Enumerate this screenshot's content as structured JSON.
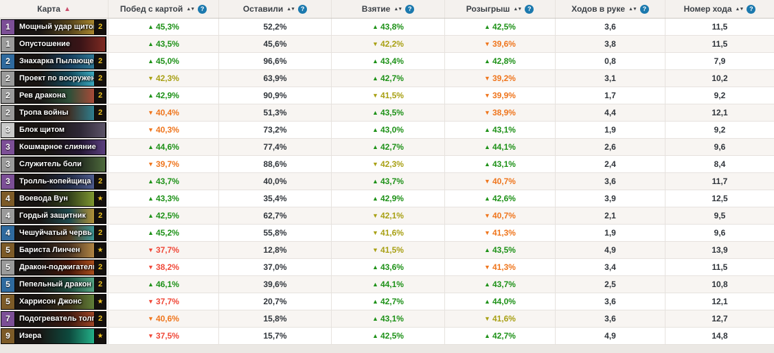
{
  "colors": {
    "green": "#1d9117",
    "olive": "#a8a014",
    "orange": "#ef751c",
    "red": "#f04838",
    "gold": "#f0c420",
    "help-blue": "#1b79ae",
    "pink": "#ca4f6d",
    "free": "#c9c9c9",
    "common": "#9a9a9a",
    "rare": "#2f6a9e",
    "epic": "#7c4f96",
    "legendary": "#7d5b28"
  },
  "table": {
    "columns": [
      {
        "label": "Карта",
        "sort": "asc",
        "help": false
      },
      {
        "label": "Побед с картой",
        "sort": "both",
        "help": true
      },
      {
        "label": "Оставили",
        "sort": "both",
        "help": true
      },
      {
        "label": "Взятие",
        "sort": "both",
        "help": true
      },
      {
        "label": "Розыгрыш",
        "sort": "both",
        "help": true
      },
      {
        "label": "Ходов в руке",
        "sort": "both",
        "help": true
      },
      {
        "label": "Номер хода",
        "sort": "both",
        "help": true
      }
    ],
    "rows": [
      {
        "cost": "1",
        "rarity": "epic",
        "name": "Мощный удар щитом",
        "count": "2",
        "wins": {
          "arrow": "up",
          "value": "45,3%",
          "tone": "green"
        },
        "kept": "52,2%",
        "drawn": {
          "arrow": "up",
          "value": "43,8%",
          "tone": "green"
        },
        "played": {
          "arrow": "up",
          "value": "42,5%",
          "tone": "green"
        },
        "hand": "3,6",
        "turn": "11,5",
        "art": [
          "#54431c",
          "#a8862e"
        ]
      },
      {
        "cost": "1",
        "rarity": "common",
        "name": "Опустошение",
        "count": "",
        "wins": {
          "arrow": "up",
          "value": "43,5%",
          "tone": "green"
        },
        "kept": "45,6%",
        "drawn": {
          "arrow": "down",
          "value": "42,2%",
          "tone": "olive"
        },
        "played": {
          "arrow": "down",
          "value": "39,6%",
          "tone": "orange"
        },
        "hand": "3,8",
        "turn": "11,5",
        "art": [
          "#3a1417",
          "#7e2a22"
        ]
      },
      {
        "cost": "2",
        "rarity": "rare",
        "name": "Знахарка Пылающег...",
        "count": "2",
        "wins": {
          "arrow": "up",
          "value": "45,0%",
          "tone": "green"
        },
        "kept": "96,6%",
        "drawn": {
          "arrow": "up",
          "value": "43,4%",
          "tone": "green"
        },
        "played": {
          "arrow": "up",
          "value": "42,8%",
          "tone": "green"
        },
        "hand": "0,8",
        "turn": "7,9",
        "art": [
          "#173d5c",
          "#2e7796"
        ]
      },
      {
        "cost": "2",
        "rarity": "common",
        "name": "Проект по вооружен...",
        "count": "2",
        "wins": {
          "arrow": "down",
          "value": "42,3%",
          "tone": "olive"
        },
        "kept": "63,9%",
        "drawn": {
          "arrow": "up",
          "value": "42,7%",
          "tone": "green"
        },
        "played": {
          "arrow": "down",
          "value": "39,2%",
          "tone": "orange"
        },
        "hand": "3,1",
        "turn": "10,2",
        "art": [
          "#14485a",
          "#3aa7bd"
        ]
      },
      {
        "cost": "2",
        "rarity": "common",
        "name": "Рев дракона",
        "count": "2",
        "wins": {
          "arrow": "up",
          "value": "42,9%",
          "tone": "green"
        },
        "kept": "90,9%",
        "drawn": {
          "arrow": "down",
          "value": "41,5%",
          "tone": "olive"
        },
        "played": {
          "arrow": "down",
          "value": "39,9%",
          "tone": "orange"
        },
        "hand": "1,7",
        "turn": "9,2",
        "art": [
          "#2e4f38",
          "#a84a38"
        ]
      },
      {
        "cost": "2",
        "rarity": "common",
        "name": "Тропа войны",
        "count": "2",
        "wins": {
          "arrow": "down",
          "value": "40,4%",
          "tone": "orange"
        },
        "kept": "51,3%",
        "drawn": {
          "arrow": "up",
          "value": "43,5%",
          "tone": "green"
        },
        "played": {
          "arrow": "down",
          "value": "38,9%",
          "tone": "orange"
        },
        "hand": "4,4",
        "turn": "12,1",
        "art": [
          "#3e3026",
          "#2e7e8e"
        ]
      },
      {
        "cost": "3",
        "rarity": "free",
        "name": "Блок щитом",
        "count": "",
        "wins": {
          "arrow": "down",
          "value": "40,3%",
          "tone": "orange"
        },
        "kept": "73,2%",
        "drawn": {
          "arrow": "up",
          "value": "43,0%",
          "tone": "green"
        },
        "played": {
          "arrow": "up",
          "value": "43,1%",
          "tone": "green"
        },
        "hand": "1,9",
        "turn": "9,2",
        "art": [
          "#2e2836",
          "#5c5468"
        ]
      },
      {
        "cost": "3",
        "rarity": "epic",
        "name": "Кошмарное слияние",
        "count": "",
        "wins": {
          "arrow": "up",
          "value": "44,6%",
          "tone": "green"
        },
        "kept": "77,4%",
        "drawn": {
          "arrow": "up",
          "value": "42,7%",
          "tone": "green"
        },
        "played": {
          "arrow": "up",
          "value": "44,1%",
          "tone": "green"
        },
        "hand": "2,6",
        "turn": "9,6",
        "art": [
          "#241634",
          "#5a3f7e"
        ]
      },
      {
        "cost": "3",
        "rarity": "common",
        "name": "Служитель боли",
        "count": "",
        "wins": {
          "arrow": "down",
          "value": "39,7%",
          "tone": "orange"
        },
        "kept": "88,6%",
        "drawn": {
          "arrow": "down",
          "value": "42,3%",
          "tone": "olive"
        },
        "played": {
          "arrow": "up",
          "value": "43,1%",
          "tone": "green"
        },
        "hand": "2,4",
        "turn": "8,4",
        "art": [
          "#232d20",
          "#4e6a3c"
        ]
      },
      {
        "cost": "3",
        "rarity": "epic",
        "name": "Тролль-копейщица",
        "count": "2",
        "wins": {
          "arrow": "up",
          "value": "43,7%",
          "tone": "green"
        },
        "kept": "40,0%",
        "drawn": {
          "arrow": "up",
          "value": "43,7%",
          "tone": "green"
        },
        "played": {
          "arrow": "down",
          "value": "40,7%",
          "tone": "orange"
        },
        "hand": "3,6",
        "turn": "11,7",
        "art": [
          "#222c46",
          "#4e5c8e"
        ]
      },
      {
        "cost": "4",
        "rarity": "legendary",
        "name": "Воевода Вун",
        "count": "★",
        "wins": {
          "arrow": "up",
          "value": "43,3%",
          "tone": "green"
        },
        "kept": "35,4%",
        "drawn": {
          "arrow": "up",
          "value": "42,9%",
          "tone": "green"
        },
        "played": {
          "arrow": "up",
          "value": "42,6%",
          "tone": "green"
        },
        "hand": "3,9",
        "turn": "12,5",
        "art": [
          "#33401a",
          "#7e9630"
        ]
      },
      {
        "cost": "4",
        "rarity": "common",
        "name": "Гордый защитник",
        "count": "2",
        "wins": {
          "arrow": "up",
          "value": "42,5%",
          "tone": "green"
        },
        "kept": "62,7%",
        "drawn": {
          "arrow": "down",
          "value": "42,1%",
          "tone": "olive"
        },
        "played": {
          "arrow": "down",
          "value": "40,7%",
          "tone": "orange"
        },
        "hand": "2,1",
        "turn": "9,5",
        "art": [
          "#1e4a4e",
          "#b09038"
        ]
      },
      {
        "cost": "4",
        "rarity": "rare",
        "name": "Чешуйчатый червь",
        "count": "2",
        "wins": {
          "arrow": "up",
          "value": "45,2%",
          "tone": "green"
        },
        "kept": "55,8%",
        "drawn": {
          "arrow": "down",
          "value": "41,6%",
          "tone": "olive"
        },
        "played": {
          "arrow": "down",
          "value": "41,3%",
          "tone": "orange"
        },
        "hand": "1,9",
        "turn": "9,6",
        "art": [
          "#4e3a20",
          "#3e9696"
        ]
      },
      {
        "cost": "5",
        "rarity": "legendary",
        "name": "Бариста Линчен",
        "count": "★",
        "wins": {
          "arrow": "down",
          "value": "37,7%",
          "tone": "red"
        },
        "kept": "12,8%",
        "drawn": {
          "arrow": "down",
          "value": "41,5%",
          "tone": "olive"
        },
        "played": {
          "arrow": "up",
          "value": "43,5%",
          "tone": "green"
        },
        "hand": "4,9",
        "turn": "13,9",
        "art": [
          "#4a3322",
          "#b08443"
        ]
      },
      {
        "cost": "5",
        "rarity": "common",
        "name": "Дракон-поджигатель",
        "count": "2",
        "wins": {
          "arrow": "down",
          "value": "38,2%",
          "tone": "red"
        },
        "kept": "37,0%",
        "drawn": {
          "arrow": "up",
          "value": "43,6%",
          "tone": "green"
        },
        "played": {
          "arrow": "down",
          "value": "41,3%",
          "tone": "orange"
        },
        "hand": "3,4",
        "turn": "11,5",
        "art": [
          "#451508",
          "#aa4e1c"
        ]
      },
      {
        "cost": "5",
        "rarity": "rare",
        "name": "Пепельный дракон",
        "count": "2",
        "wins": {
          "arrow": "up",
          "value": "46,1%",
          "tone": "green"
        },
        "kept": "39,6%",
        "drawn": {
          "arrow": "up",
          "value": "44,1%",
          "tone": "green"
        },
        "played": {
          "arrow": "up",
          "value": "43,7%",
          "tone": "green"
        },
        "hand": "2,5",
        "turn": "10,8",
        "art": [
          "#1d4a3c",
          "#55a583"
        ]
      },
      {
        "cost": "5",
        "rarity": "legendary",
        "name": "Харрисон Джонс",
        "count": "★",
        "wins": {
          "arrow": "down",
          "value": "37,7%",
          "tone": "red"
        },
        "kept": "20,7%",
        "drawn": {
          "arrow": "up",
          "value": "42,7%",
          "tone": "green"
        },
        "played": {
          "arrow": "up",
          "value": "44,0%",
          "tone": "green"
        },
        "hand": "3,6",
        "turn": "12,1",
        "art": [
          "#3c3118",
          "#5f7e38"
        ]
      },
      {
        "cost": "7",
        "rarity": "epic",
        "name": "Подогреватель толпы",
        "count": "2",
        "wins": {
          "arrow": "down",
          "value": "40,6%",
          "tone": "orange"
        },
        "kept": "15,8%",
        "drawn": {
          "arrow": "up",
          "value": "43,1%",
          "tone": "green"
        },
        "played": {
          "arrow": "down",
          "value": "41,6%",
          "tone": "olive"
        },
        "hand": "3,6",
        "turn": "12,7",
        "art": [
          "#3f1a10",
          "#9e4526"
        ]
      },
      {
        "cost": "9",
        "rarity": "legendary",
        "name": "Изера",
        "count": "★",
        "wins": {
          "arrow": "down",
          "value": "37,5%",
          "tone": "red"
        },
        "kept": "15,7%",
        "drawn": {
          "arrow": "up",
          "value": "42,5%",
          "tone": "green"
        },
        "played": {
          "arrow": "up",
          "value": "42,7%",
          "tone": "green"
        },
        "hand": "4,9",
        "turn": "14,8",
        "art": [
          "#0d4a3e",
          "#23b087"
        ]
      }
    ]
  }
}
